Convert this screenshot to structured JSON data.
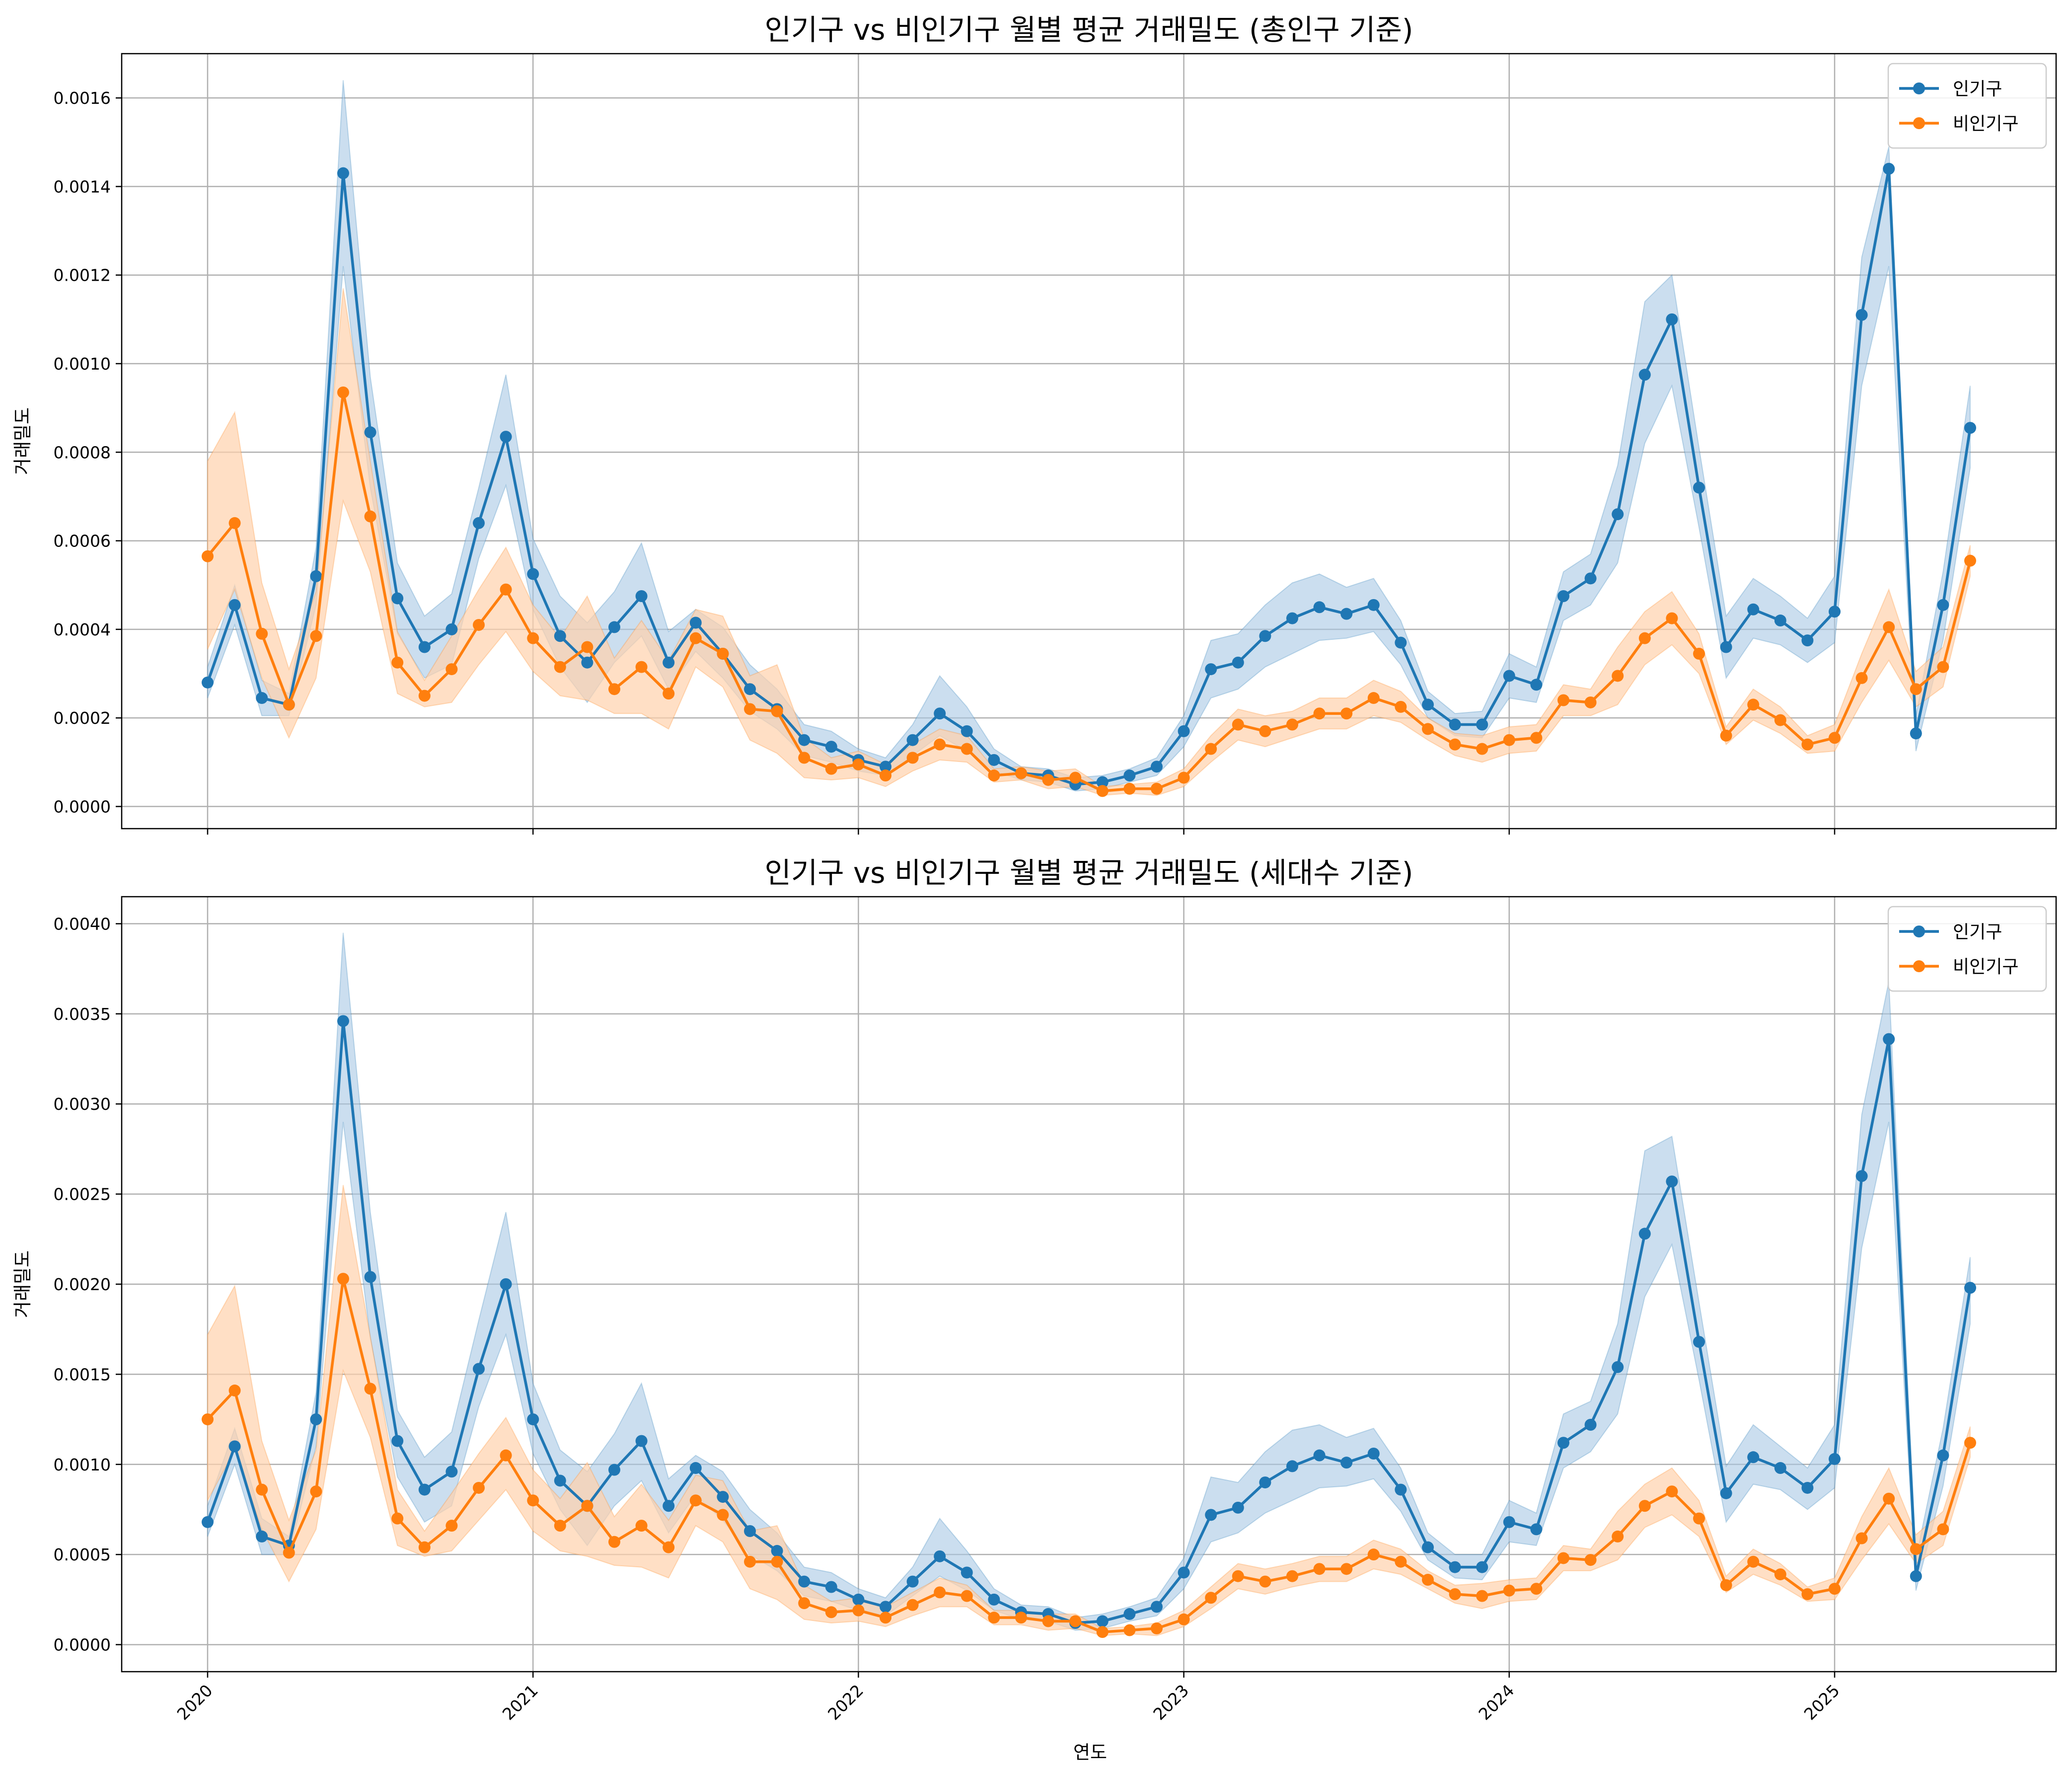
{
  "figure": {
    "xlabel": "연도",
    "legend_placement": "top-right",
    "grid": true,
    "colors": {
      "popular": "#1f77b4",
      "nonpopular": "#ff7f0e",
      "popular_band": "#a9c8e4",
      "nonpopular_band": "#ffd2ad",
      "grid": "#b0b0b0"
    }
  },
  "chart_data": [
    {
      "type": "line",
      "title": "인기구 vs 비인기구 월별 평균 거래밀도 (총인구 기준)",
      "xlabel": "",
      "ylabel": "거래밀도",
      "ylim": [
        -5e-05,
        0.0017
      ],
      "yticks": [
        0.0,
        0.0002,
        0.0004,
        0.0006,
        0.0008,
        0.001,
        0.0012,
        0.0014,
        0.0016
      ],
      "ytick_labels": [
        "0.0000",
        "0.0002",
        "0.0004",
        "0.0006",
        "0.0008",
        "0.0010",
        "0.0012",
        "0.0014",
        "0.0016"
      ],
      "x_start": "2020-01",
      "xticks": [
        "2020",
        "2021",
        "2022",
        "2023",
        "2024",
        "2025"
      ],
      "xtick_labels_visible": false,
      "grid": true,
      "legend": "top-right",
      "series": [
        {
          "name": "인기구",
          "color": "#1f77b4",
          "values": [
            0.00028,
            0.000455,
            0.000245,
            0.00023,
            0.00052,
            0.00143,
            0.000845,
            0.00047,
            0.00036,
            0.0004,
            0.00064,
            0.000835,
            0.000525,
            0.000385,
            0.000325,
            0.000405,
            0.000475,
            0.000325,
            0.000415,
            0.000345,
            0.000265,
            0.00022,
            0.00015,
            0.000135,
            0.000105,
            9e-05,
            0.00015,
            0.00021,
            0.00017,
            0.000105,
            7.5e-05,
            7e-05,
            5e-05,
            5.5e-05,
            7e-05,
            9e-05,
            0.00017,
            0.00031,
            0.000325,
            0.000385,
            0.000425,
            0.00045,
            0.000435,
            0.000455,
            0.00037,
            0.00023,
            0.000185,
            0.000185,
            0.000295,
            0.000275,
            0.000475,
            0.000515,
            0.00066,
            0.000975,
            0.0011,
            0.00072,
            0.00036,
            0.000445,
            0.00042,
            0.000375,
            0.00044,
            0.00111,
            0.00144,
            0.000165,
            0.000455,
            0.000855
          ],
          "lower": [
            0.000245,
            0.00041,
            0.000205,
            0.000205,
            0.000455,
            0.00122,
            0.00072,
            0.00039,
            0.00029,
            0.00032,
            0.00056,
            0.000725,
            0.000445,
            0.000315,
            0.000235,
            0.000325,
            0.000385,
            0.000265,
            0.00035,
            0.00029,
            0.000215,
            0.000175,
            0.000115,
            0.0001,
            8e-05,
            7e-05,
            0.000115,
            0.00016,
            0.000125,
            8e-05,
            6e-05,
            5.5e-05,
            3.5e-05,
            4e-05,
            5.5e-05,
            7e-05,
            0.000135,
            0.000245,
            0.000265,
            0.000315,
            0.000345,
            0.000375,
            0.00038,
            0.000395,
            0.00032,
            0.0002,
            0.00016,
            0.000155,
            0.000245,
            0.000235,
            0.00042,
            0.000455,
            0.00055,
            0.00082,
            0.00095,
            0.00063,
            0.00029,
            0.00038,
            0.000365,
            0.000325,
            0.00037,
            0.00095,
            0.00122,
            0.000125,
            0.000375,
            0.000765
          ],
          "upper": [
            0.000315,
            0.0005,
            0.000285,
            0.000255,
            0.000585,
            0.00164,
            0.00097,
            0.00055,
            0.00043,
            0.00048,
            0.00072,
            0.000975,
            0.000605,
            0.000475,
            0.000415,
            0.000485,
            0.000595,
            0.000395,
            0.000445,
            0.000405,
            0.00032,
            0.000265,
            0.000185,
            0.00017,
            0.00013,
            0.00011,
            0.000185,
            0.000295,
            0.000225,
            0.00013,
            9e-05,
            8.5e-05,
            6.5e-05,
            7e-05,
            8.5e-05,
            0.00011,
            0.000205,
            0.000375,
            0.00039,
            0.000455,
            0.000505,
            0.000525,
            0.000495,
            0.000515,
            0.00042,
            0.00026,
            0.00021,
            0.000215,
            0.000345,
            0.000315,
            0.00053,
            0.00057,
            0.00077,
            0.00114,
            0.0012,
            0.00081,
            0.00043,
            0.000515,
            0.000475,
            0.000425,
            0.00052,
            0.00124,
            0.00149,
            0.000205,
            0.00053,
            0.00095
          ]
        },
        {
          "name": "비인기구",
          "color": "#ff7f0e",
          "values": [
            0.000565,
            0.00064,
            0.00039,
            0.00023,
            0.000385,
            0.000935,
            0.000655,
            0.000325,
            0.00025,
            0.00031,
            0.00041,
            0.00049,
            0.00038,
            0.000315,
            0.00036,
            0.000265,
            0.000315,
            0.000255,
            0.00038,
            0.000345,
            0.00022,
            0.000215,
            0.00011,
            8.5e-05,
            9.5e-05,
            7e-05,
            0.00011,
            0.00014,
            0.00013,
            7e-05,
            7.5e-05,
            6e-05,
            6.5e-05,
            3.5e-05,
            4e-05,
            4e-05,
            6.5e-05,
            0.00013,
            0.000185,
            0.00017,
            0.000185,
            0.00021,
            0.00021,
            0.000245,
            0.000225,
            0.000175,
            0.00014,
            0.00013,
            0.00015,
            0.000155,
            0.00024,
            0.000235,
            0.000295,
            0.00038,
            0.000425,
            0.000345,
            0.00016,
            0.00023,
            0.000195,
            0.00014,
            0.000155,
            0.00029,
            0.000405,
            0.000265,
            0.000315,
            0.000555
          ],
          "lower": [
            0.000355,
            0.00049,
            0.00029,
            0.000155,
            0.00029,
            0.00069,
            0.00053,
            0.000255,
            0.000225,
            0.000235,
            0.00032,
            0.000395,
            0.000305,
            0.00025,
            0.00024,
            0.00021,
            0.00021,
            0.000175,
            0.000315,
            0.00027,
            0.00015,
            0.00012,
            6.5e-05,
            6e-05,
            6.5e-05,
            4.5e-05,
            8e-05,
            0.000105,
            0.0001,
            5.5e-05,
            6e-05,
            4e-05,
            4.5e-05,
            2.5e-05,
            3e-05,
            2.5e-05,
            4.5e-05,
            0.0001,
            0.00015,
            0.000135,
            0.000155,
            0.000175,
            0.000175,
            0.000205,
            0.00019,
            0.00015,
            0.000115,
            0.0001,
            0.00012,
            0.000125,
            0.000205,
            0.000205,
            0.00023,
            0.00032,
            0.000365,
            0.0003,
            0.00014,
            0.000195,
            0.000165,
            0.00012,
            0.000125,
            0.000235,
            0.00033,
            0.000225,
            0.00027,
            0.00052
          ],
          "upper": [
            0.00078,
            0.00089,
            0.000505,
            0.00031,
            0.000485,
            0.00117,
            0.00078,
            0.000395,
            0.000285,
            0.000385,
            0.00049,
            0.000585,
            0.000455,
            0.00038,
            0.000475,
            0.000335,
            0.00042,
            0.00033,
            0.000445,
            0.00043,
            0.000295,
            0.00032,
            0.000155,
            0.00011,
            0.000125,
            9.5e-05,
            0.00014,
            0.000175,
            0.00016,
            8.5e-05,
            9e-05,
            8e-05,
            8.5e-05,
            4.5e-05,
            5e-05,
            5.5e-05,
            8.5e-05,
            0.00016,
            0.00022,
            0.000205,
            0.000215,
            0.000245,
            0.000245,
            0.000285,
            0.00026,
            0.0002,
            0.000165,
            0.00016,
            0.00018,
            0.000185,
            0.000275,
            0.000265,
            0.00036,
            0.00044,
            0.000485,
            0.00039,
            0.00018,
            0.000265,
            0.000225,
            0.00016,
            0.000185,
            0.000345,
            0.00049,
            0.000305,
            0.00036,
            0.00059
          ]
        }
      ]
    },
    {
      "type": "line",
      "title": "인기구 vs 비인기구 월별 평균 거래밀도 (세대수 기준)",
      "xlabel": "연도",
      "ylabel": "거래밀도",
      "ylim": [
        -0.00015,
        0.00415
      ],
      "yticks": [
        0.0,
        0.0005,
        0.001,
        0.0015,
        0.002,
        0.0025,
        0.003,
        0.0035,
        0.004
      ],
      "ytick_labels": [
        "0.0000",
        "0.0005",
        "0.0010",
        "0.0015",
        "0.0020",
        "0.0025",
        "0.0030",
        "0.0035",
        "0.0040"
      ],
      "x_start": "2020-01",
      "xticks": [
        "2020",
        "2021",
        "2022",
        "2023",
        "2024",
        "2025"
      ],
      "xtick_labels_visible": true,
      "grid": true,
      "legend": "top-right",
      "series": [
        {
          "name": "인기구",
          "color": "#1f77b4",
          "values": [
            0.00068,
            0.0011,
            0.0006,
            0.00055,
            0.00125,
            0.00346,
            0.00204,
            0.00113,
            0.00086,
            0.00096,
            0.00153,
            0.002,
            0.00125,
            0.00091,
            0.00077,
            0.00097,
            0.00113,
            0.00077,
            0.00098,
            0.00082,
            0.00063,
            0.00052,
            0.00035,
            0.00032,
            0.00025,
            0.00021,
            0.00035,
            0.00049,
            0.0004,
            0.00025,
            0.00018,
            0.00017,
            0.00012,
            0.00013,
            0.00017,
            0.00021,
            0.0004,
            0.00072,
            0.00076,
            0.0009,
            0.00099,
            0.00105,
            0.00101,
            0.00106,
            0.00086,
            0.00054,
            0.00043,
            0.00043,
            0.00068,
            0.00064,
            0.00112,
            0.00122,
            0.00154,
            0.00228,
            0.00257,
            0.00168,
            0.00084,
            0.00104,
            0.00098,
            0.00087,
            0.00103,
            0.0026,
            0.00336,
            0.00038,
            0.00105,
            0.00198
          ],
          "lower": [
            0.0006,
            0.001,
            0.0005,
            0.0005,
            0.0011,
            0.0029,
            0.0017,
            0.00093,
            0.00068,
            0.00077,
            0.00132,
            0.00172,
            0.00106,
            0.00075,
            0.00055,
            0.00077,
            0.00091,
            0.00062,
            0.00083,
            0.00069,
            0.0005,
            0.00041,
            0.00027,
            0.00024,
            0.00019,
            0.00016,
            0.00027,
            0.00038,
            0.0003,
            0.00019,
            0.00014,
            0.00013,
            8e-05,
            9e-05,
            0.00013,
            0.00016,
            0.00031,
            0.00057,
            0.00062,
            0.00073,
            0.0008,
            0.00087,
            0.00088,
            0.00092,
            0.00074,
            0.00047,
            0.00037,
            0.00036,
            0.00057,
            0.00055,
            0.00098,
            0.00107,
            0.00128,
            0.00193,
            0.00222,
            0.00147,
            0.00068,
            0.00089,
            0.00086,
            0.00075,
            0.00087,
            0.0022,
            0.0029,
            0.0003,
            0.00088,
            0.00178
          ],
          "upper": [
            0.00077,
            0.0012,
            0.0007,
            0.0006,
            0.0014,
            0.00395,
            0.0024,
            0.0013,
            0.00104,
            0.00118,
            0.0018,
            0.0024,
            0.00145,
            0.00108,
            0.00096,
            0.00117,
            0.00145,
            0.00092,
            0.00105,
            0.00096,
            0.00075,
            0.00062,
            0.00043,
            0.0004,
            0.00031,
            0.00026,
            0.00043,
            0.0007,
            0.00052,
            0.00031,
            0.00022,
            0.00021,
            0.00015,
            0.00017,
            0.00021,
            0.00026,
            0.00048,
            0.00093,
            0.0009,
            0.00107,
            0.00119,
            0.00122,
            0.00115,
            0.0012,
            0.00098,
            0.00062,
            0.0005,
            0.0005,
            0.0008,
            0.00073,
            0.00128,
            0.00135,
            0.00178,
            0.00274,
            0.00282,
            0.0019,
            0.00099,
            0.00122,
            0.0011,
            0.00098,
            0.00122,
            0.00294,
            0.00368,
            0.00048,
            0.0012,
            0.00215
          ]
        },
        {
          "name": "비인기구",
          "color": "#ff7f0e",
          "values": [
            0.00125,
            0.00141,
            0.00086,
            0.00051,
            0.00085,
            0.00203,
            0.00142,
            0.0007,
            0.00054,
            0.00066,
            0.00087,
            0.00105,
            0.0008,
            0.00066,
            0.00077,
            0.00057,
            0.00066,
            0.00054,
            0.0008,
            0.00072,
            0.00046,
            0.00046,
            0.00023,
            0.00018,
            0.00019,
            0.00015,
            0.00022,
            0.00029,
            0.00027,
            0.00015,
            0.00015,
            0.00013,
            0.00013,
            7e-05,
            8e-05,
            9e-05,
            0.00014,
            0.00026,
            0.00038,
            0.00035,
            0.00038,
            0.00042,
            0.00042,
            0.0005,
            0.00046,
            0.00036,
            0.00028,
            0.00027,
            0.0003,
            0.00031,
            0.00048,
            0.00047,
            0.0006,
            0.00077,
            0.00085,
            0.0007,
            0.00033,
            0.00046,
            0.00039,
            0.00028,
            0.00031,
            0.00059,
            0.00081,
            0.00053,
            0.00064,
            0.00112
          ],
          "lower": [
            0.0008,
            0.00108,
            0.00064,
            0.00035,
            0.00064,
            0.00152,
            0.00115,
            0.00055,
            0.00049,
            0.00052,
            0.00069,
            0.00086,
            0.00063,
            0.00052,
            0.00049,
            0.00044,
            0.00043,
            0.00037,
            0.00066,
            0.00057,
            0.00031,
            0.00025,
            0.00014,
            0.00012,
            0.00013,
            0.0001,
            0.00016,
            0.00021,
            0.00021,
            0.00011,
            0.00011,
            8e-05,
            9e-05,
            5e-05,
            6e-05,
            5e-05,
            0.0001,
            0.0002,
            0.00031,
            0.00028,
            0.00032,
            0.00035,
            0.00035,
            0.00042,
            0.00039,
            0.00031,
            0.00023,
            0.0002,
            0.00024,
            0.00025,
            0.00041,
            0.00041,
            0.00047,
            0.00065,
            0.00072,
            0.0006,
            0.00029,
            0.00039,
            0.00033,
            0.00024,
            0.00025,
            0.00047,
            0.00067,
            0.00045,
            0.00055,
            0.00104
          ],
          "upper": [
            0.00172,
            0.00199,
            0.00113,
            0.00069,
            0.00108,
            0.00255,
            0.00171,
            0.00086,
            0.00063,
            0.00084,
            0.00106,
            0.00126,
            0.00097,
            0.00081,
            0.00101,
            0.00071,
            0.00089,
            0.00069,
            0.00094,
            0.00091,
            0.00063,
            0.00066,
            0.00033,
            0.00024,
            0.00026,
            0.00021,
            0.00029,
            0.00037,
            0.00033,
            0.00019,
            0.00019,
            0.00017,
            0.00017,
            9e-05,
            0.0001,
            0.00012,
            0.00019,
            0.00032,
            0.00045,
            0.00042,
            0.00045,
            0.00049,
            0.00049,
            0.00058,
            0.00053,
            0.00041,
            0.00033,
            0.00034,
            0.00036,
            0.00037,
            0.00055,
            0.00053,
            0.00074,
            0.00089,
            0.00098,
            0.0008,
            0.00038,
            0.00053,
            0.00045,
            0.00032,
            0.00037,
            0.00071,
            0.00098,
            0.00061,
            0.00074,
            0.00121
          ]
        }
      ]
    }
  ]
}
